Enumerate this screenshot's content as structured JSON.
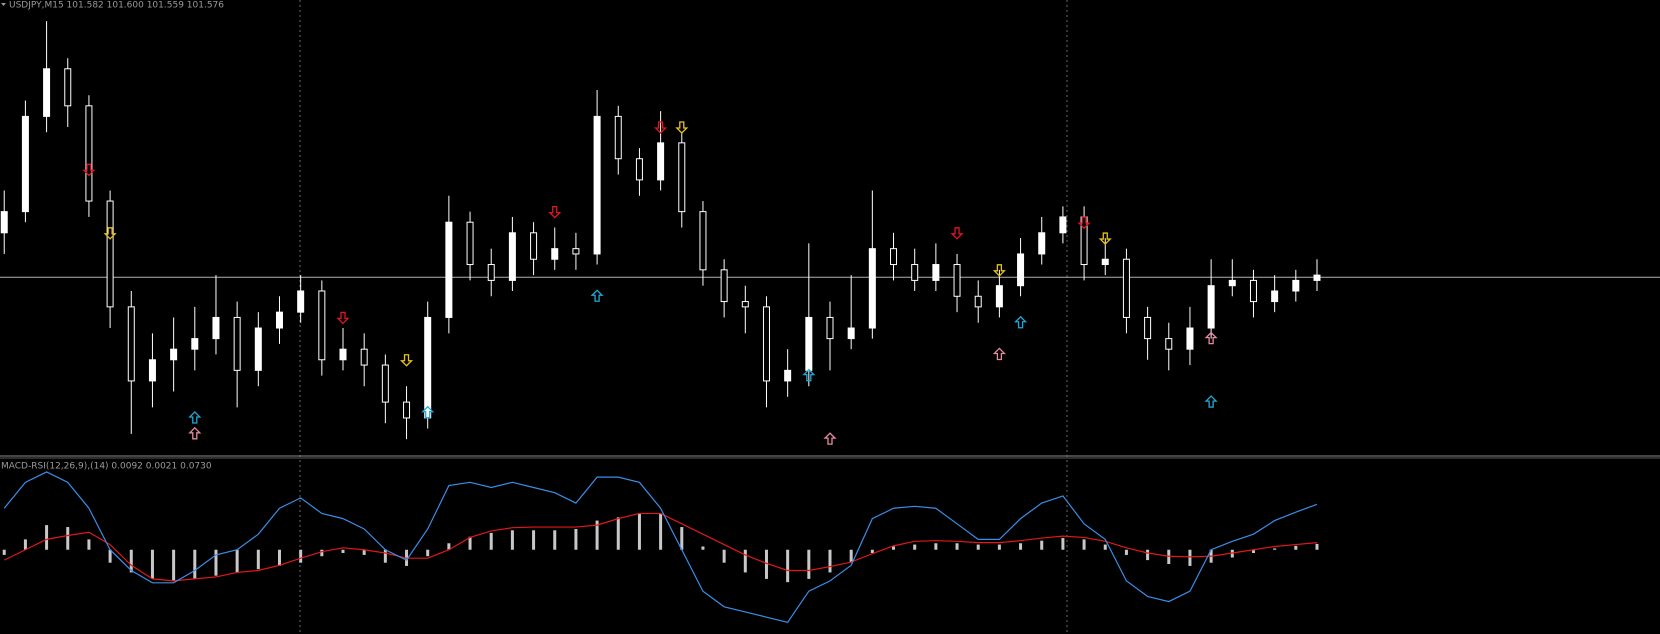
{
  "chart_data": [
    {
      "type": "candlestick",
      "title": "USDJPY,M15 101.582 101.600 101.559 101.576",
      "open": [
        101.66,
        101.7,
        101.88,
        101.97,
        101.9,
        101.72,
        101.52,
        101.38,
        101.42,
        101.44,
        101.46,
        101.5,
        101.4,
        101.48,
        101.51,
        101.55,
        101.42,
        101.44,
        101.41,
        101.34,
        101.31,
        101.5,
        101.68,
        101.6,
        101.57,
        101.66,
        101.61,
        101.63,
        101.62,
        101.88,
        101.8,
        101.76,
        101.83,
        101.7,
        101.59,
        101.53,
        101.52,
        101.38,
        101.4,
        101.5,
        101.46,
        101.48,
        101.63,
        101.6,
        101.57,
        101.6,
        101.54,
        101.52,
        101.56,
        101.62,
        101.66,
        101.69,
        101.6,
        101.61,
        101.5,
        101.46,
        101.44,
        101.48,
        101.56,
        101.57,
        101.53,
        101.55,
        101.57
      ],
      "high": [
        101.74,
        101.91,
        102.06,
        101.99,
        101.92,
        101.74,
        101.55,
        101.47,
        101.5,
        101.52,
        101.58,
        101.53,
        101.51,
        101.54,
        101.58,
        101.57,
        101.48,
        101.47,
        101.43,
        101.37,
        101.53,
        101.73,
        101.7,
        101.63,
        101.69,
        101.68,
        101.67,
        101.66,
        101.93,
        101.9,
        101.82,
        101.89,
        101.85,
        101.72,
        101.61,
        101.56,
        101.54,
        101.44,
        101.64,
        101.53,
        101.58,
        101.74,
        101.66,
        101.63,
        101.64,
        101.62,
        101.57,
        101.59,
        101.65,
        101.69,
        101.71,
        101.71,
        101.65,
        101.63,
        101.52,
        101.49,
        101.52,
        101.61,
        101.61,
        101.59,
        101.58,
        101.59,
        101.61
      ],
      "low": [
        101.62,
        101.68,
        101.85,
        101.86,
        101.69,
        101.48,
        101.28,
        101.33,
        101.36,
        101.4,
        101.43,
        101.33,
        101.37,
        101.45,
        101.49,
        101.39,
        101.4,
        101.37,
        101.3,
        101.27,
        101.29,
        101.47,
        101.57,
        101.54,
        101.55,
        101.58,
        101.59,
        101.59,
        101.6,
        101.77,
        101.73,
        101.74,
        101.67,
        101.56,
        101.5,
        101.47,
        101.33,
        101.35,
        101.37,
        101.4,
        101.44,
        101.46,
        101.57,
        101.55,
        101.55,
        101.51,
        101.49,
        101.5,
        101.54,
        101.6,
        101.64,
        101.57,
        101.58,
        101.47,
        101.42,
        101.4,
        101.41,
        101.46,
        101.54,
        101.5,
        101.51,
        101.53,
        101.55
      ],
      "close": [
        101.7,
        101.88,
        101.97,
        101.9,
        101.72,
        101.52,
        101.38,
        101.42,
        101.44,
        101.46,
        101.5,
        101.4,
        101.48,
        101.51,
        101.55,
        101.42,
        101.44,
        101.41,
        101.34,
        101.31,
        101.5,
        101.68,
        101.6,
        101.57,
        101.66,
        101.61,
        101.63,
        101.62,
        101.88,
        101.8,
        101.76,
        101.83,
        101.7,
        101.59,
        101.53,
        101.52,
        101.38,
        101.4,
        101.5,
        101.46,
        101.48,
        101.63,
        101.6,
        101.57,
        101.6,
        101.54,
        101.52,
        101.56,
        101.62,
        101.66,
        101.69,
        101.6,
        101.61,
        101.5,
        101.46,
        101.44,
        101.48,
        101.56,
        101.57,
        101.53,
        101.55,
        101.57,
        101.58
      ],
      "bid": 101.576,
      "ylim": [
        101.24,
        102.1
      ],
      "up_color": "#ffffff",
      "down_color": "#000000",
      "wick_color": "#ffffff",
      "signals": [
        {
          "index": 4,
          "value": 101.78,
          "direction": "down",
          "color": "#e0161e"
        },
        {
          "index": 5,
          "value": 101.66,
          "direction": "down",
          "color": "#e8c21a"
        },
        {
          "index": 9,
          "value": 101.31,
          "direction": "up",
          "color": "#22a8d8"
        },
        {
          "index": 9,
          "value": 101.28,
          "direction": "up",
          "color": "#e68aa2"
        },
        {
          "index": 16,
          "value": 101.5,
          "direction": "down",
          "color": "#e0161e"
        },
        {
          "index": 19,
          "value": 101.42,
          "direction": "down",
          "color": "#e8c21a"
        },
        {
          "index": 20,
          "value": 101.32,
          "direction": "up",
          "color": "#22a8d8"
        },
        {
          "index": 26,
          "value": 101.7,
          "direction": "down",
          "color": "#e0161e"
        },
        {
          "index": 28,
          "value": 101.54,
          "direction": "up",
          "color": "#22a8d8"
        },
        {
          "index": 31,
          "value": 101.86,
          "direction": "down",
          "color": "#e0161e"
        },
        {
          "index": 32,
          "value": 101.86,
          "direction": "down",
          "color": "#e8c21a"
        },
        {
          "index": 38,
          "value": 101.39,
          "direction": "up",
          "color": "#22a8d8"
        },
        {
          "index": 39,
          "value": 101.27,
          "direction": "up",
          "color": "#e68aa2"
        },
        {
          "index": 45,
          "value": 101.66,
          "direction": "down",
          "color": "#e0161e"
        },
        {
          "index": 47,
          "value": 101.59,
          "direction": "down",
          "color": "#e8c21a"
        },
        {
          "index": 47,
          "value": 101.43,
          "direction": "up",
          "color": "#e68aa2"
        },
        {
          "index": 48,
          "value": 101.49,
          "direction": "up",
          "color": "#22a8d8"
        },
        {
          "index": 51,
          "value": 101.68,
          "direction": "down",
          "color": "#e0161e"
        },
        {
          "index": 52,
          "value": 101.65,
          "direction": "down",
          "color": "#e8c21a"
        },
        {
          "index": 57,
          "value": 101.46,
          "direction": "up",
          "color": "#e68aa2"
        },
        {
          "index": 57,
          "value": 101.34,
          "direction": "up",
          "color": "#22a8d8"
        }
      ]
    },
    {
      "type": "macd",
      "title": "MACD-RSI(12,26,9),(14) 0.0092 0.0021 0.0730",
      "ylim": [
        -0.13,
        0.14
      ],
      "histogram": {
        "color": "#c8c8c8",
        "values": [
          -0.008,
          0.016,
          0.038,
          0.035,
          0.016,
          -0.02,
          -0.035,
          -0.045,
          -0.048,
          -0.045,
          -0.04,
          -0.035,
          -0.03,
          -0.025,
          -0.02,
          -0.01,
          -0.005,
          -0.008,
          -0.02,
          -0.025,
          -0.01,
          0.01,
          0.02,
          0.026,
          0.03,
          0.03,
          0.03,
          0.032,
          0.045,
          0.05,
          0.056,
          0.055,
          0.035,
          0.005,
          -0.02,
          -0.035,
          -0.045,
          -0.05,
          -0.045,
          -0.035,
          -0.02,
          -0.005,
          0.005,
          0.008,
          0.01,
          0.01,
          0.008,
          0.008,
          0.01,
          0.014,
          0.018,
          0.016,
          0.008,
          -0.008,
          -0.016,
          -0.022,
          -0.025,
          -0.02,
          -0.012,
          -0.005,
          0.002,
          0.006,
          0.009
        ]
      },
      "series": [
        {
          "color": "#e01818",
          "values": [
            -0.016,
            0,
            0.016,
            0.022,
            0.027,
            0.008,
            -0.024,
            -0.045,
            -0.048,
            -0.045,
            -0.042,
            -0.035,
            -0.032,
            -0.024,
            -0.013,
            -0.003,
            0.003,
            0,
            -0.005,
            -0.013,
            -0.013,
            0,
            0.019,
            0.029,
            0.034,
            0.035,
            0.035,
            0.035,
            0.038,
            0.048,
            0.056,
            0.056,
            0.04,
            0.024,
            0.008,
            -0.008,
            -0.021,
            -0.032,
            -0.032,
            -0.026,
            -0.019,
            -0.006,
            0.006,
            0.013,
            0.014,
            0.013,
            0.011,
            0.011,
            0.014,
            0.018,
            0.021,
            0.019,
            0.013,
            0.003,
            -0.005,
            -0.01,
            -0.011,
            -0.01,
            -0.005,
            0,
            0.005,
            0.008,
            0.011
          ]
        },
        {
          "color": "#3a8ee8",
          "values": [
            0.064,
            0.104,
            0.12,
            0.104,
            0.064,
            0,
            -0.032,
            -0.051,
            -0.051,
            -0.032,
            -0.008,
            0,
            0.024,
            0.064,
            0.08,
            0.056,
            0.048,
            0.032,
            0,
            -0.016,
            0.032,
            0.099,
            0.104,
            0.096,
            0.104,
            0.096,
            0.088,
            0.072,
            0.112,
            0.112,
            0.104,
            0.064,
            0,
            -0.064,
            -0.088,
            -0.096,
            -0.104,
            -0.112,
            -0.064,
            -0.048,
            -0.024,
            0.048,
            0.064,
            0.067,
            0.064,
            0.04,
            0.016,
            0.016,
            0.048,
            0.072,
            0.083,
            0.04,
            0.016,
            -0.048,
            -0.072,
            -0.08,
            -0.064,
            0,
            0.013,
            0.024,
            0.045,
            0.058,
            0.07
          ]
        }
      ]
    }
  ]
}
